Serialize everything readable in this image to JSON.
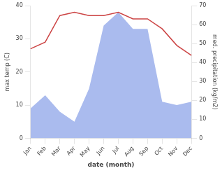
{
  "chart_data": {
    "type": "line",
    "categories": [
      "Jan",
      "Feb",
      "Mar",
      "Apr",
      "May",
      "Jun",
      "Jul",
      "Aug",
      "Sep",
      "Oct",
      "Nov",
      "Dec"
    ],
    "series": [
      {
        "type": "area",
        "color": "#aabbee",
        "values": [
          9,
          13,
          8,
          5,
          15,
          34,
          38,
          33,
          33,
          11,
          10,
          11
        ]
      },
      {
        "type": "line",
        "color": "#cc4444",
        "values": [
          27,
          29,
          37,
          38,
          37,
          37,
          38,
          36,
          36,
          33,
          28,
          25
        ]
      }
    ],
    "xlabel": "date (month)",
    "ylabel": "max temp (C)",
    "y2label": "med. precipitation (kg/m2)",
    "ylim": [
      0,
      40
    ],
    "yticks": [
      0,
      10,
      20,
      30,
      40
    ],
    "y2lim": [
      0,
      70
    ],
    "y2ticks": [
      0,
      10,
      20,
      30,
      40,
      50,
      60,
      70
    ],
    "grid": false
  }
}
